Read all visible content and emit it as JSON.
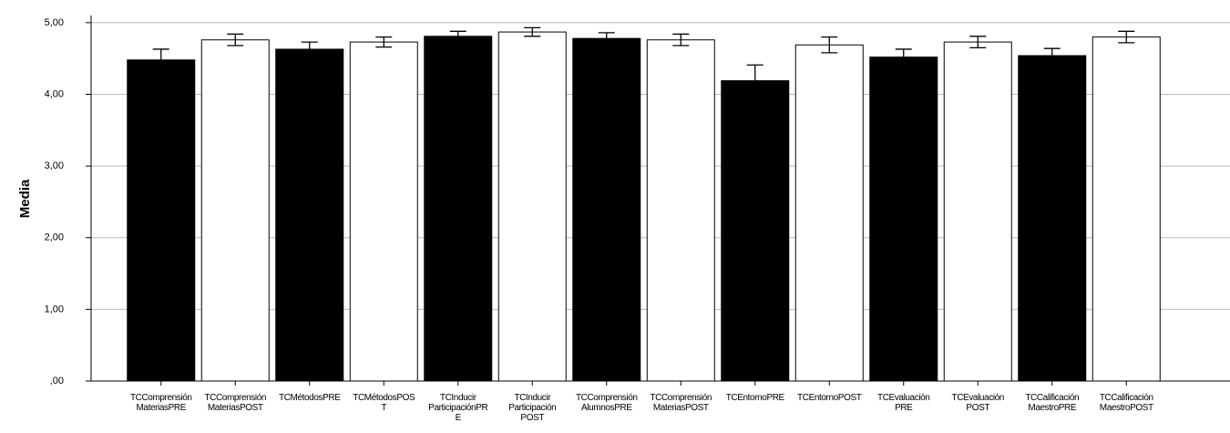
{
  "chart_data": {
    "type": "bar",
    "y_label": "Media",
    "categories": [
      "TCComprensión\nMateriasPRE",
      "TCComprensión\nMateriasPOST",
      "TCMétodosPRE",
      "TCMétodosPOS\nT",
      "TCInducir\nParticipaciónPR\nE",
      "TCInducir\nParticipación\nPOST",
      "TCComprensión\nAlumnosPRE",
      "TCComprensión\nMateriasPOST",
      "TCEntornoPRE",
      "TCEntornoPOST",
      "TCEvaluación\nPRE",
      "TCEvaluación\nPOST",
      "TCCalificación\nMaestroPRE",
      "TCCalificación\nMaestroPOST"
    ],
    "values": [
      4.48,
      4.76,
      4.63,
      4.73,
      4.81,
      4.87,
      4.78,
      4.76,
      4.19,
      4.69,
      4.52,
      4.73,
      4.54,
      4.8
    ],
    "errors": [
      0.15,
      0.08,
      0.1,
      0.07,
      0.07,
      0.06,
      0.08,
      0.08,
      0.22,
      0.11,
      0.11,
      0.08,
      0.1,
      0.08
    ],
    "colors": [
      "#000000",
      "#ffffff",
      "#000000",
      "#ffffff",
      "#000000",
      "#ffffff",
      "#000000",
      "#ffffff",
      "#000000",
      "#ffffff",
      "#000000",
      "#ffffff",
      "#000000",
      "#ffffff"
    ],
    "ylim": [
      0,
      5.1
    ],
    "yticks": [
      {
        "value": 0,
        "label": ",00"
      },
      {
        "value": 1,
        "label": "1,00"
      },
      {
        "value": 2,
        "label": "2,00"
      },
      {
        "value": 3,
        "label": "3,00"
      },
      {
        "value": 4,
        "label": "4,00"
      },
      {
        "value": 5,
        "label": "5,00"
      }
    ],
    "grid": true
  }
}
